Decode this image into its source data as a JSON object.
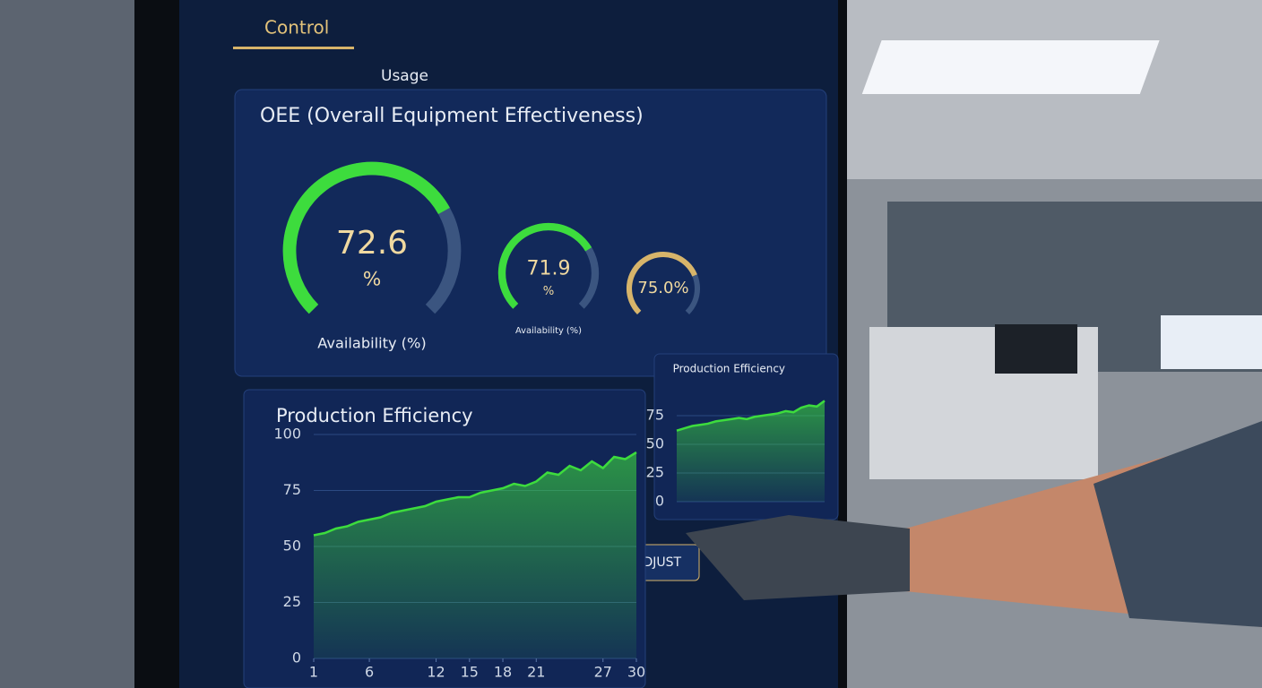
{
  "tabs": [
    "Control",
    "Usage"
  ],
  "oee": {
    "title": "OEE (Overall Equipment Effectiveness)",
    "gauges": [
      {
        "value": 72.6,
        "unit": "%",
        "label": "Availability (%)"
      },
      {
        "value": 71.9,
        "unit": "%",
        "label": "Availability (%)"
      },
      {
        "value": 75.0,
        "value_label": "75.0%"
      }
    ]
  },
  "buttons": [
    "ADJUST"
  ],
  "chart_data": [
    {
      "type": "area",
      "title": "Production Efficiency",
      "color": "#3ddc3d",
      "x": [
        1,
        2,
        3,
        4,
        5,
        6,
        7,
        8,
        9,
        10,
        11,
        12,
        13,
        14,
        15,
        16,
        17,
        18,
        19,
        20,
        21,
        22,
        23,
        24,
        25,
        26,
        27,
        28,
        29,
        30
      ],
      "values": [
        55,
        56,
        58,
        59,
        61,
        62,
        63,
        65,
        66,
        67,
        68,
        70,
        71,
        72,
        72,
        74,
        75,
        76,
        78,
        77,
        79,
        83,
        82,
        86,
        84,
        88,
        85,
        90,
        89,
        92
      ],
      "xlim": [
        1,
        30
      ],
      "xticks": [
        1,
        6,
        12,
        15,
        18,
        21,
        27,
        30
      ],
      "ylim": [
        0,
        100
      ],
      "yticks": [
        0,
        25,
        50,
        75,
        100
      ],
      "grid": true
    },
    {
      "type": "area",
      "title": "Production Efficiency",
      "color": "#3ddc3d",
      "x": [
        1,
        2,
        3,
        4,
        5,
        6,
        7,
        8,
        9,
        10,
        11,
        12,
        13,
        14,
        15,
        16,
        17,
        18,
        19,
        20
      ],
      "values": [
        62,
        64,
        66,
        67,
        68,
        70,
        71,
        72,
        73,
        72,
        74,
        75,
        76,
        77,
        79,
        78,
        82,
        84,
        83,
        88
      ],
      "xlim": [
        1,
        20
      ],
      "ylim": [
        0,
        100
      ],
      "yticks": [
        0,
        25,
        50,
        75
      ],
      "grid": true
    }
  ]
}
